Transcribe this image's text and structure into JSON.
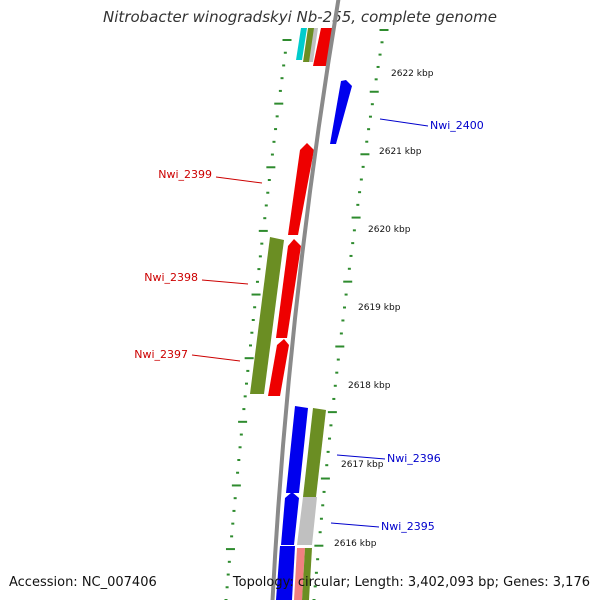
{
  "title": "Nitrobacter winogradskyi Nb-255, complete genome",
  "footer": {
    "accession": "Accession: NC_007406",
    "topology": "Topology: circular; Length: 3,402,093 bp; Genes: 3,176"
  },
  "colors": {
    "backbone": "#8a8a8a",
    "tick": "#2e8b2e",
    "red_gene": "#ee0000",
    "blue_gene": "#0000ee",
    "olive_gene": "#6b8e23",
    "gray_gene": "#c0c0c0",
    "cyan_gene": "#00cccc",
    "pink_gene": "#f08080"
  },
  "position_labels": [
    "2622 kbp",
    "2621 kbp",
    "2620 kbp",
    "2619 kbp",
    "2618 kbp",
    "2617 kbp",
    "2616 kbp"
  ],
  "gene_labels": [
    {
      "name": "Nwi_2400",
      "color": "#0000cc"
    },
    {
      "name": "Nwi_2399",
      "color": "#cc0000"
    },
    {
      "name": "Nwi_2398",
      "color": "#cc0000"
    },
    {
      "name": "Nwi_2397",
      "color": "#cc0000"
    },
    {
      "name": "Nwi_2396",
      "color": "#0000cc"
    },
    {
      "name": "Nwi_2395",
      "color": "#0000cc"
    }
  ]
}
